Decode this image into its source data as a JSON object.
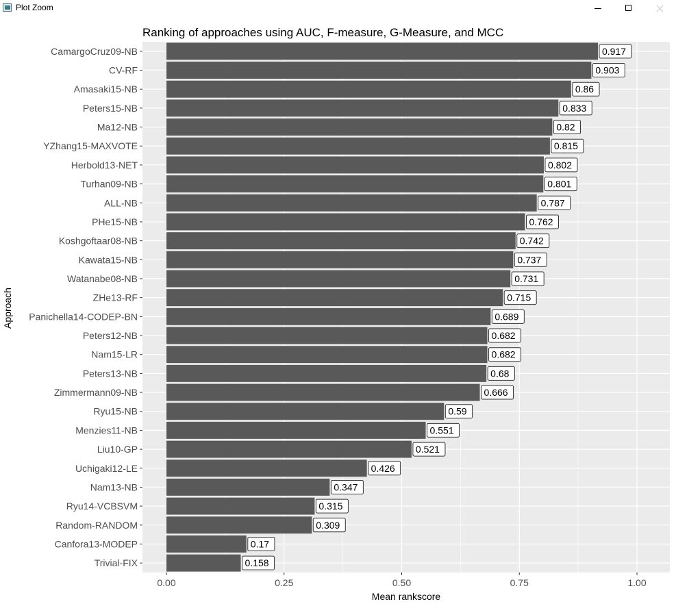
{
  "window": {
    "title": "Plot Zoom",
    "icon": "plot-zoom-app-icon",
    "controls": [
      "minimize",
      "maximize",
      "close"
    ]
  },
  "chart_data": {
    "type": "bar",
    "orientation": "horizontal",
    "title": "Ranking of approaches using AUC, F-measure, G-Measure, and MCC",
    "xlabel": "Mean rankscore",
    "ylabel": "Approach",
    "xlim": [
      0,
      1
    ],
    "xticks": [
      0.0,
      0.25,
      0.5,
      0.75,
      1.0
    ],
    "xtick_labels": [
      "0.00",
      "0.25",
      "0.50",
      "0.75",
      "1.00"
    ],
    "grid": true,
    "legend": "none",
    "colors": {
      "panel": "#ebebeb",
      "bar": "#595959",
      "grid": "#ffffff",
      "label_border": "#333333"
    },
    "categories": [
      "CamargoCruz09-NB",
      "CV-RF",
      "Amasaki15-NB",
      "Peters15-NB",
      "Ma12-NB",
      "YZhang15-MAXVOTE",
      "Herbold13-NET",
      "Turhan09-NB",
      "ALL-NB",
      "PHe15-NB",
      "Koshgoftaar08-NB",
      "Kawata15-NB",
      "Watanabe08-NB",
      "ZHe13-RF",
      "Panichella14-CODEP-BN",
      "Peters12-NB",
      "Nam15-LR",
      "Peters13-NB",
      "Zimmermann09-NB",
      "Ryu15-NB",
      "Menzies11-NB",
      "Liu10-GP",
      "Uchigaki12-LE",
      "Nam13-NB",
      "Ryu14-VCBSVM",
      "Random-RANDOM",
      "Canfora13-MODEP",
      "Trivial-FIX"
    ],
    "values": [
      0.917,
      0.903,
      0.86,
      0.833,
      0.82,
      0.815,
      0.802,
      0.801,
      0.787,
      0.762,
      0.742,
      0.737,
      0.731,
      0.715,
      0.689,
      0.682,
      0.682,
      0.68,
      0.666,
      0.59,
      0.551,
      0.521,
      0.426,
      0.347,
      0.315,
      0.309,
      0.17,
      0.158
    ],
    "value_labels": [
      "0.917",
      "0.903",
      "0.86",
      "0.833",
      "0.82",
      "0.815",
      "0.802",
      "0.801",
      "0.787",
      "0.762",
      "0.742",
      "0.737",
      "0.731",
      "0.715",
      "0.689",
      "0.682",
      "0.682",
      "0.68",
      "0.666",
      "0.59",
      "0.551",
      "0.521",
      "0.426",
      "0.347",
      "0.315",
      "0.309",
      "0.17",
      "0.158"
    ]
  }
}
